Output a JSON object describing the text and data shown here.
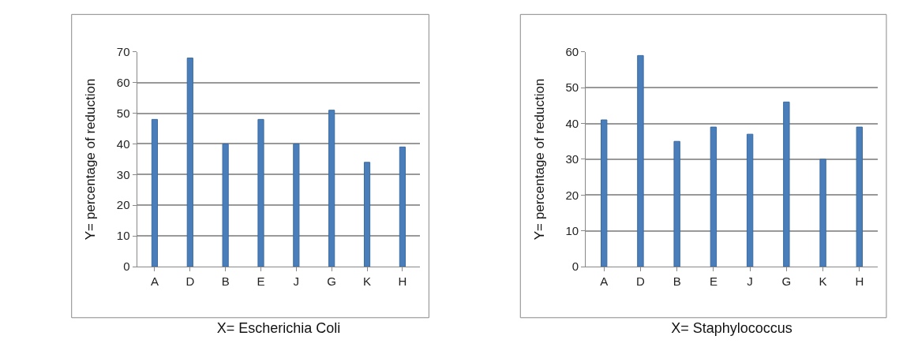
{
  "chart_data": [
    {
      "type": "bar",
      "categories": [
        "A",
        "D",
        "B",
        "E",
        "J",
        "G",
        "K",
        "H"
      ],
      "values": [
        48,
        68,
        40,
        48,
        40,
        51,
        34,
        39
      ],
      "color": "#4a7ebb",
      "ylim": [
        0,
        70
      ],
      "yticks": [
        0,
        10,
        20,
        30,
        40,
        50,
        60,
        70
      ],
      "grid": "y",
      "xlabel": "X= Escherichia Coli",
      "ylabel": "Y= percentage of reduction"
    },
    {
      "type": "bar",
      "categories": [
        "A",
        "D",
        "B",
        "E",
        "J",
        "G",
        "K",
        "H"
      ],
      "values": [
        41,
        59,
        35,
        39,
        37,
        46,
        30,
        39
      ],
      "color": "#4a7ebb",
      "ylim": [
        0,
        60
      ],
      "yticks": [
        0,
        10,
        20,
        30,
        40,
        50,
        60
      ],
      "grid": "y",
      "xlabel": "X= Staphylococcus",
      "ylabel": "Y= percentage of reduction"
    }
  ]
}
